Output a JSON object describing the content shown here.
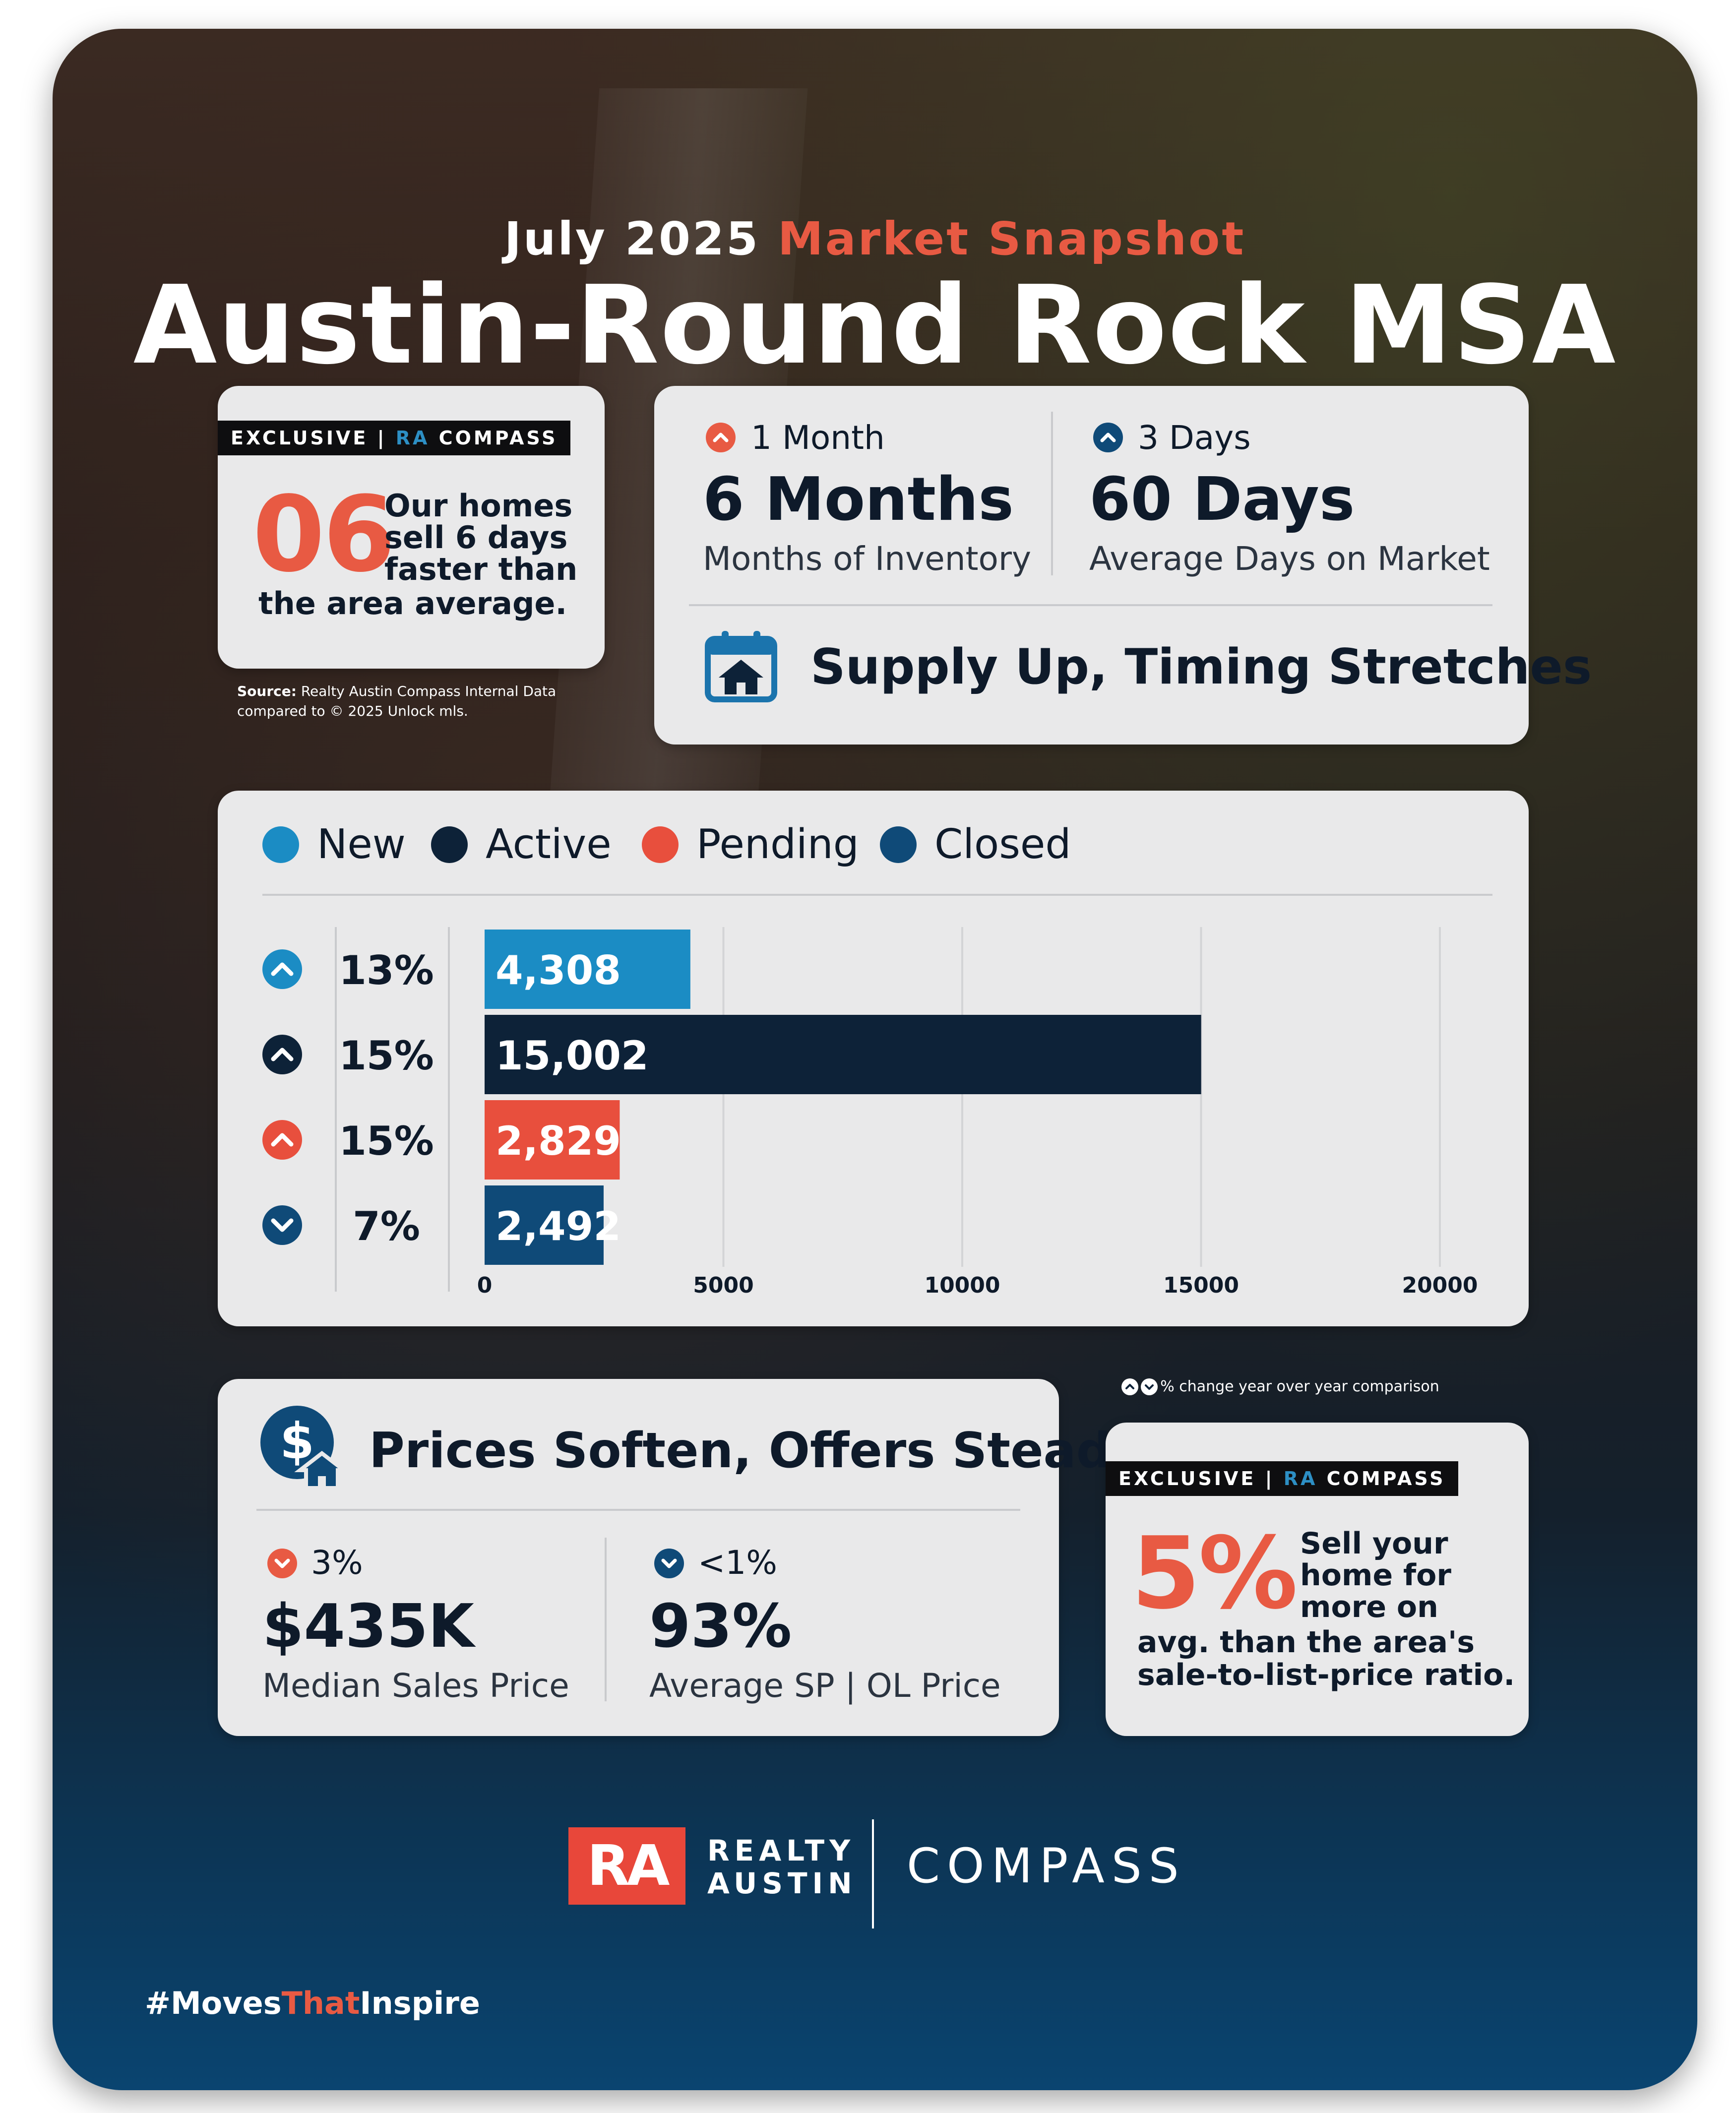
{
  "header": {
    "date": "July 2025",
    "snapshot": "Market Snapshot",
    "title": "Austin-Round Rock MSA"
  },
  "exclusive_days": {
    "badge_prefix": "EXCLUSIVE |",
    "badge_ra": "RA",
    "badge_suffix": "COMPASS",
    "big_number": "06",
    "text_line1": "Our homes",
    "text_line2": "sell 6 days",
    "text_line3": "faster than",
    "text_line4": "the area average."
  },
  "source": {
    "label": "Source:",
    "line1": "Realty Austin Compass Internal Data",
    "line2": "compared to © 2025 Unlock mls."
  },
  "supply": {
    "inventory_change": "1 Month",
    "inventory_value": "6 Months",
    "inventory_label": "Months of Inventory",
    "dom_change": "3 Days",
    "dom_value": "60 Days",
    "dom_label": "Average Days on Market",
    "headline": "Supply Up, Timing Stretches",
    "icon": "calendar-house-icon"
  },
  "chart_data": {
    "type": "bar",
    "orientation": "horizontal",
    "categories": [
      "New",
      "Active",
      "Pending",
      "Closed"
    ],
    "values": [
      4308,
      15002,
      2829,
      2492
    ],
    "value_labels": [
      "4,308",
      "15,002",
      "2,829",
      "2,492"
    ],
    "changes": [
      "13%",
      "15%",
      "15%",
      "7%"
    ],
    "change_directions": [
      "up",
      "up",
      "up",
      "down"
    ],
    "colors": [
      "#1b8cc4",
      "#0d2238",
      "#e84f3d",
      "#0f4a78"
    ],
    "xlim": [
      0,
      20000
    ],
    "xticks": [
      0,
      5000,
      10000,
      15000,
      20000
    ],
    "xtick_labels": [
      "0",
      "5000",
      "10000",
      "15000",
      "20000"
    ],
    "grid": true,
    "legend_placement": "top"
  },
  "yoy_note": "% change year over year comparison",
  "prices": {
    "headline": "Prices Soften, Offers Steady",
    "icon": "dollar-house-icon",
    "median_change": "3%",
    "median_value": "$435K",
    "median_label": "Median Sales Price",
    "ratio_change": "<1%",
    "ratio_value": "93%",
    "ratio_label": "Average SP | OL Price"
  },
  "exclusive_ratio": {
    "badge_prefix": "EXCLUSIVE |",
    "badge_ra": "RA",
    "badge_suffix": "COMPASS",
    "big_number": "5%",
    "text_line1": "Sell your",
    "text_line2": "home for",
    "text_line3": "more on",
    "text_line4": "avg. than the area's",
    "text_line5": "sale-to-list-price ratio."
  },
  "footer": {
    "ra_logo": "RA",
    "realty": "REALTY",
    "austin": "AUSTIN",
    "compass": "COMPASS",
    "hashtag_1": "#Moves",
    "hashtag_2": "That",
    "hashtag_3": "Inspire"
  },
  "colors": {
    "accent_red": "#e85a43",
    "accent_blue": "#2d8fc4",
    "navy": "#0d2238",
    "card_bg": "#e9e9ea"
  }
}
